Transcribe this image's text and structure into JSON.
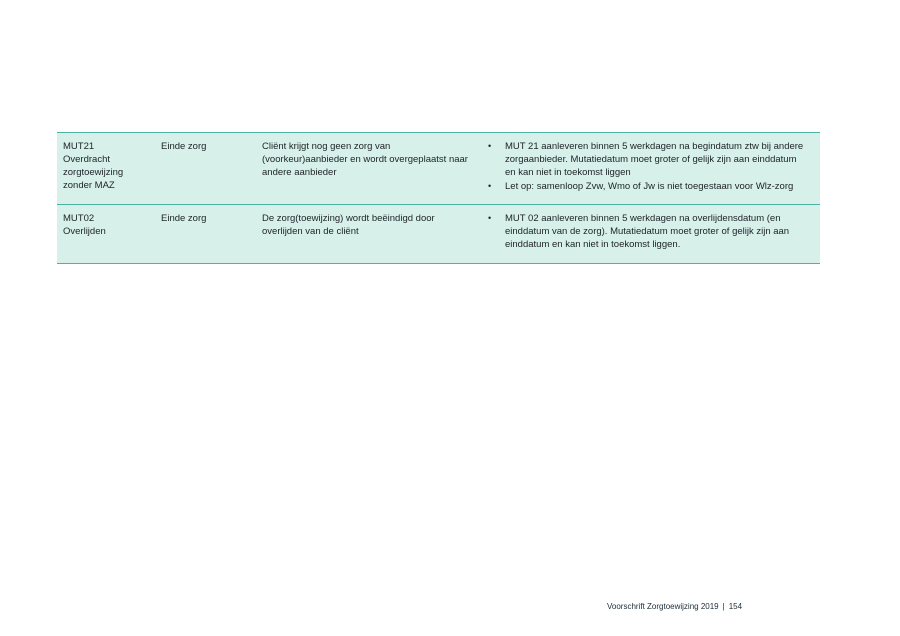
{
  "table": {
    "colors": {
      "row_background": "#d7f0ea",
      "border": "#4cb2a6",
      "text": "#20262b"
    },
    "rows": [
      {
        "code": "MUT21",
        "label": "Overdracht zorgtoewijzing zonder MAZ",
        "phase": "Einde zorg",
        "description": "Cliënt krijgt nog geen zorg van (voorkeur)aanbieder en wordt overgeplaatst naar andere aanbieder",
        "bullet_glyph": "•",
        "bullets": [
          "MUT 21 aanleveren binnen 5 werkdagen na begindatum ztw bij andere zorgaanbieder. Mutatiedatum moet groter of gelijk zijn aan einddatum en kan niet in toekomst liggen",
          "Let op: samenloop Zvw, Wmo of Jw is niet toegestaan voor Wlz-zorg"
        ]
      },
      {
        "code": "MUT02",
        "label": "Overlijden",
        "phase": "Einde zorg",
        "description": "De zorg(toewijzing) wordt beëindigd door overlijden van de cliënt",
        "bullet_glyph": "•",
        "bullets": [
          "MUT 02 aanleveren binnen 5 werkdagen na overlijdensdatum (en einddatum van de zorg). Mutatiedatum moet groter of gelijk zijn aan einddatum en kan niet in toekomst liggen."
        ]
      }
    ]
  },
  "footer": {
    "title": "Voorschrift Zorgtoewijzing 2019",
    "separator": "|",
    "page_number": "154"
  }
}
